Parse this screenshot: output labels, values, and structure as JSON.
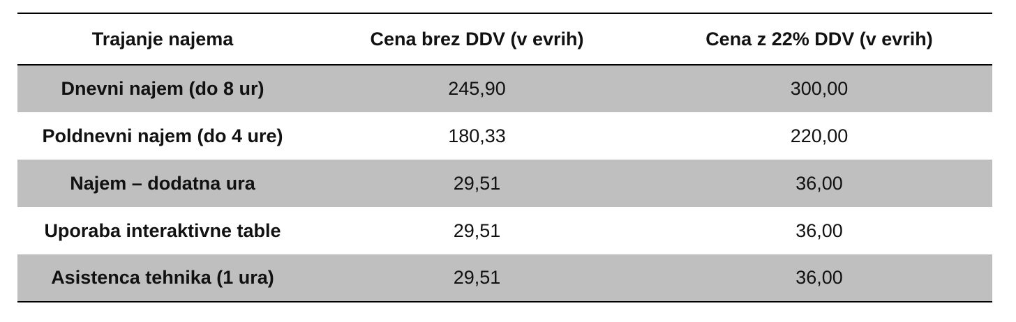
{
  "table": {
    "headers": [
      "Trajanje najema",
      "Cena brez DDV (v evrih)",
      "Cena z 22% DDV (v evrih)"
    ],
    "rows": [
      {
        "label": "Dnevni najem (do 8 ur)",
        "price_net": "245,90",
        "price_gross": "300,00"
      },
      {
        "label": "Poldnevni najem (do 4 ure)",
        "price_net": "180,33",
        "price_gross": "220,00"
      },
      {
        "label": "Najem – dodatna ura",
        "price_net": "29,51",
        "price_gross": "36,00"
      },
      {
        "label": "Uporaba interaktivne table",
        "price_net": "29,51",
        "price_gross": "36,00"
      },
      {
        "label": "Asistenca tehnika (1 ura)",
        "price_net": "29,51",
        "price_gross": "36,00"
      }
    ]
  },
  "colors": {
    "row_shade": "#bfbfbf",
    "rule": "#000000",
    "text": "#111111"
  }
}
